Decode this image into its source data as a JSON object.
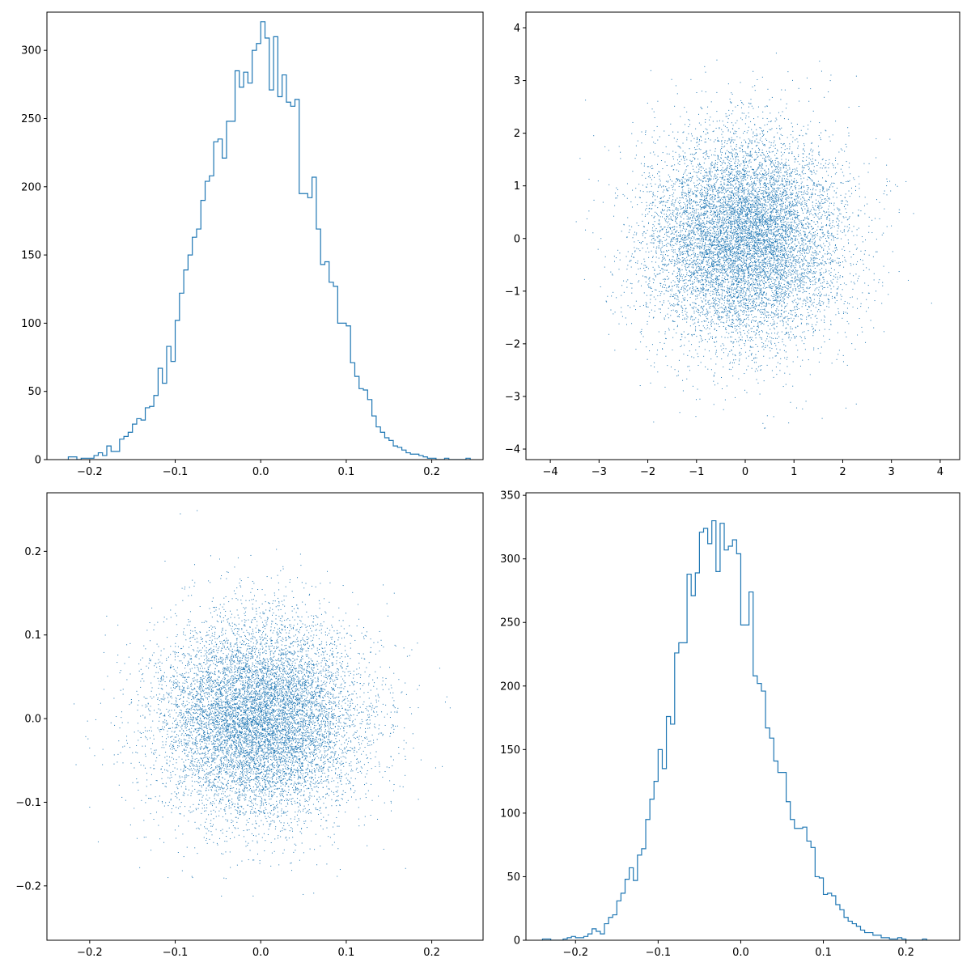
{
  "colors": {
    "series": "#1f77b4",
    "axes": "#000000",
    "background": "#ffffff"
  },
  "chart_data": [
    {
      "type": "histogram",
      "position": "top-left",
      "histtype": "step",
      "title": "",
      "xlabel": "",
      "ylabel": "",
      "xlim": [
        -0.25,
        0.26
      ],
      "ylim": [
        0,
        328
      ],
      "xticks": [
        -0.2,
        -0.1,
        0.0,
        0.1,
        0.2
      ],
      "xtick_labels": [
        "−0.2",
        "−0.1",
        "0.0",
        "0.1",
        "0.2"
      ],
      "yticks": [
        0,
        50,
        100,
        150,
        200,
        250,
        300
      ],
      "ytick_labels": [
        "0",
        "50",
        "100",
        "150",
        "200",
        "250",
        "300"
      ],
      "bin_start": -0.225,
      "bin_width": 0.005,
      "counts": [
        2,
        2,
        0,
        1,
        1,
        1,
        3,
        5,
        3,
        10,
        6,
        6,
        15,
        17,
        20,
        26,
        30,
        29,
        38,
        39,
        47,
        67,
        56,
        83,
        72,
        102,
        122,
        139,
        150,
        163,
        169,
        190,
        204,
        208,
        233,
        235,
        221,
        248,
        248,
        285,
        273,
        284,
        276,
        300,
        305,
        321,
        309,
        271,
        310,
        266,
        282,
        262,
        259,
        264,
        195,
        195,
        192,
        207,
        169,
        143,
        145,
        130,
        127,
        100,
        100,
        98,
        71,
        61,
        52,
        51,
        44,
        32,
        24,
        20,
        16,
        14,
        10,
        9,
        7,
        5,
        4,
        4,
        3,
        2,
        1,
        1,
        0,
        0,
        1,
        0,
        0,
        0,
        0,
        1
      ]
    },
    {
      "type": "scatter",
      "position": "top-right",
      "title": "",
      "xlabel": "",
      "ylabel": "",
      "xlim": [
        -4.5,
        4.4
      ],
      "ylim": [
        -4.2,
        4.3
      ],
      "xticks": [
        -4,
        -3,
        -2,
        -1,
        0,
        1,
        2,
        3,
        4
      ],
      "xtick_labels": [
        "−4",
        "−3",
        "−2",
        "−1",
        "0",
        "1",
        "2",
        "3",
        "4"
      ],
      "yticks": [
        -4,
        -3,
        -2,
        -1,
        0,
        1,
        2,
        3,
        4
      ],
      "ytick_labels": [
        "−4",
        "−3",
        "−2",
        "−1",
        "0",
        "1",
        "2",
        "3",
        "4"
      ],
      "distribution": {
        "kind": "normal",
        "mean": [
          0,
          0
        ],
        "std": [
          1,
          1
        ],
        "n": 10000,
        "seed": 11
      }
    },
    {
      "type": "scatter",
      "position": "bottom-left",
      "title": "",
      "xlabel": "",
      "ylabel": "",
      "xlim": [
        -0.25,
        0.26
      ],
      "ylim": [
        -0.265,
        0.27
      ],
      "xticks": [
        -0.2,
        -0.1,
        0.0,
        0.1,
        0.2
      ],
      "xtick_labels": [
        "−0.2",
        "−0.1",
        "0.0",
        "0.1",
        "0.2"
      ],
      "yticks": [
        -0.2,
        -0.1,
        0.0,
        0.1,
        0.2
      ],
      "ytick_labels": [
        "−0.2",
        "−0.1",
        "0.0",
        "0.1",
        "0.2"
      ],
      "distribution": {
        "kind": "normal",
        "mean": [
          0,
          0
        ],
        "std": [
          0.06,
          0.06
        ],
        "n": 10000,
        "seed": 29
      }
    },
    {
      "type": "histogram",
      "position": "bottom-right",
      "histtype": "step",
      "title": "",
      "xlabel": "",
      "ylabel": "",
      "xlim": [
        -0.26,
        0.265
      ],
      "ylim": [
        0,
        352
      ],
      "xticks": [
        -0.2,
        -0.1,
        0.0,
        0.1,
        0.2
      ],
      "xtick_labels": [
        "−0.2",
        "−0.1",
        "0.0",
        "0.1",
        "0.2"
      ],
      "yticks": [
        0,
        50,
        100,
        150,
        200,
        250,
        300,
        350
      ],
      "ytick_labels": [
        "0",
        "50",
        "100",
        "150",
        "200",
        "250",
        "300",
        "350"
      ],
      "bin_start": -0.24,
      "bin_width": 0.005,
      "counts": [
        1,
        1,
        0,
        0,
        0,
        1,
        2,
        3,
        2,
        2,
        3,
        5,
        9,
        7,
        5,
        13,
        18,
        20,
        31,
        37,
        48,
        57,
        47,
        67,
        72,
        95,
        111,
        125,
        150,
        135,
        176,
        170,
        226,
        234,
        234,
        288,
        271,
        289,
        321,
        324,
        312,
        330,
        290,
        328,
        307,
        310,
        315,
        304,
        248,
        248,
        274,
        208,
        202,
        196,
        167,
        159,
        141,
        132,
        132,
        109,
        95,
        88,
        88,
        89,
        78,
        73,
        50,
        49,
        36,
        37,
        35,
        28,
        24,
        18,
        15,
        13,
        11,
        8,
        6,
        6,
        4,
        4,
        2,
        2,
        1,
        1,
        2,
        1,
        0,
        0,
        0,
        0,
        1
      ]
    }
  ]
}
